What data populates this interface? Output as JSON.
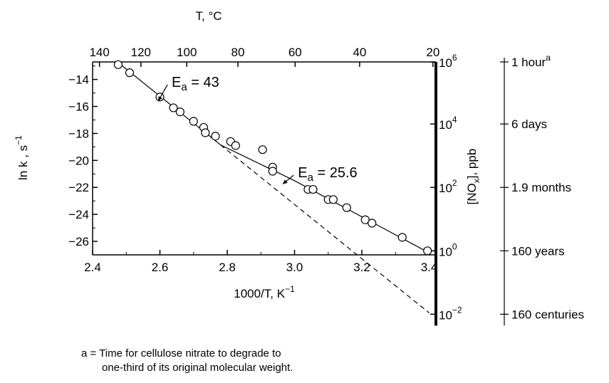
{
  "chart_data": {
    "type": "scatter",
    "title": "",
    "xlabel": "1000/T, K",
    "xlabel_sup": "−1",
    "ylabel": "ln k , s",
    "ylabel_sup": "−1",
    "xlim": [
      2.4,
      3.42
    ],
    "ylim": [
      -27,
      -12.7
    ],
    "x_ticks": [
      2.4,
      2.6,
      2.8,
      3.0,
      3.2,
      3.4
    ],
    "x_tick_labels": [
      "2.4",
      "2.6",
      "2.8",
      "3.0",
      "3.2",
      "3.4"
    ],
    "y_ticks": [
      -14,
      -16,
      -18,
      -20,
      -22,
      -24,
      -26
    ],
    "y_tick_labels": [
      "−14",
      "−16",
      "−18",
      "−20",
      "−22",
      "−24",
      "−26"
    ],
    "top_axis": {
      "label": "T, °C",
      "ticks": [
        140,
        120,
        100,
        80,
        60,
        40,
        20
      ],
      "tick_labels": [
        "140",
        "120",
        "100",
        "80",
        "60",
        "40",
        "20"
      ]
    },
    "right_axis": {
      "label": "[NO",
      "label_sub": "x",
      "label_tail": "], ppb",
      "ticks": [
        {
          "base": "10",
          "exp": "6",
          "ln_k": -12.7
        },
        {
          "base": "10",
          "exp": "4",
          "ln_k": -17.3
        },
        {
          "base": "10",
          "exp": "2",
          "ln_k": -22.0
        },
        {
          "base": "10",
          "exp": "0",
          "ln_k": -26.7
        },
        {
          "base": "10",
          "exp": "−2",
          "ln_k": -31.4
        }
      ]
    },
    "time_axis": {
      "ticks": [
        {
          "label": "1 hour",
          "sup": "a",
          "ln_k": -12.7
        },
        {
          "label": "6 days",
          "sup": "",
          "ln_k": -17.3
        },
        {
          "label": "1.9 months",
          "sup": "",
          "ln_k": -22.0
        },
        {
          "label": "160 years",
          "sup": "",
          "ln_k": -26.7
        },
        {
          "label": "160 centuries",
          "sup": "",
          "ln_k": -31.4
        }
      ]
    },
    "series": [
      {
        "values": [
          {
            "x": 2.476,
            "y": -12.9
          },
          {
            "x": 2.51,
            "y": -13.5
          },
          {
            "x": 2.6,
            "y": -15.3
          },
          {
            "x": 2.64,
            "y": -16.1
          },
          {
            "x": 2.66,
            "y": -16.4
          },
          {
            "x": 2.7,
            "y": -17.1
          },
          {
            "x": 2.73,
            "y": -17.55
          },
          {
            "x": 2.735,
            "y": -17.95
          },
          {
            "x": 2.765,
            "y": -18.2
          },
          {
            "x": 2.81,
            "y": -18.6
          },
          {
            "x": 2.825,
            "y": -18.9
          },
          {
            "x": 2.905,
            "y": -19.2
          },
          {
            "x": 2.935,
            "y": -20.5
          },
          {
            "x": 2.935,
            "y": -20.8
          },
          {
            "x": 3.04,
            "y": -22.15
          },
          {
            "x": 3.055,
            "y": -22.15
          },
          {
            "x": 3.1,
            "y": -22.9
          },
          {
            "x": 3.115,
            "y": -22.9
          },
          {
            "x": 3.155,
            "y": -23.5
          },
          {
            "x": 3.21,
            "y": -24.4
          },
          {
            "x": 3.23,
            "y": -24.65
          },
          {
            "x": 3.32,
            "y": -25.7
          },
          {
            "x": 3.395,
            "y": -26.7
          }
        ]
      }
    ],
    "fit_lines": [
      {
        "style": "solid",
        "points": [
          {
            "x": 2.476,
            "y": -12.75
          },
          {
            "x": 2.78,
            "y": -18.85
          },
          {
            "x": 3.0,
            "y": -21.5
          },
          {
            "x": 3.4,
            "y": -26.85
          }
        ]
      },
      {
        "style": "dashed",
        "points": [
          {
            "x": 2.78,
            "y": -18.85
          },
          {
            "x": 3.4,
            "y": -31.3
          }
        ]
      }
    ],
    "annotations": [
      {
        "base": "E",
        "sub": "a",
        "text": " = 43",
        "x": 2.635,
        "y": -14.55,
        "arrow_to": {
          "x": 2.595,
          "y": -15.6
        }
      },
      {
        "base": "E",
        "sub": "a",
        "text": " = 25.6",
        "x": 3.01,
        "y": -21.25,
        "arrow_to": {
          "x": 2.965,
          "y": -21.75
        }
      }
    ],
    "grid": false
  },
  "footnote": {
    "line1": "a = Time for cellulose nitrate to degrade to",
    "line2": "one-third of its original molecular weight."
  }
}
